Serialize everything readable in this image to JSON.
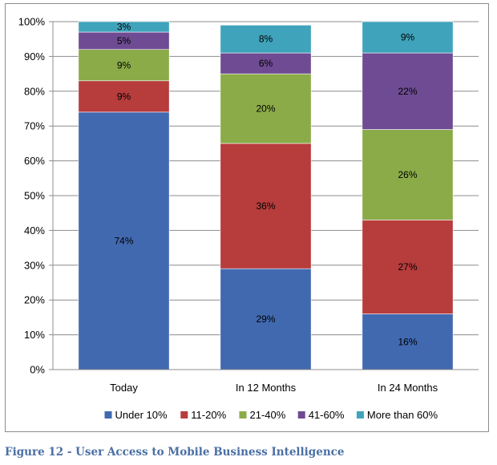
{
  "chart_data": {
    "type": "bar",
    "stacked": true,
    "categories": [
      "Today",
      "In 12 Months",
      "In 24 Months"
    ],
    "series": [
      {
        "name": "Under 10%",
        "color": "#4169b0",
        "values": [
          74,
          29,
          16
        ]
      },
      {
        "name": "11-20%",
        "color": "#b73c3c",
        "values": [
          9,
          36,
          27
        ]
      },
      {
        "name": "21-40%",
        "color": "#8aab48",
        "values": [
          9,
          20,
          26
        ]
      },
      {
        "name": "41-60%",
        "color": "#6e4b92",
        "values": [
          5,
          6,
          22
        ]
      },
      {
        "name": "More than 60%",
        "color": "#3fa3bb",
        "values": [
          3,
          8,
          9
        ]
      }
    ],
    "data_labels": [
      [
        "74%",
        "29%",
        "16%"
      ],
      [
        "9%",
        "36%",
        "27%"
      ],
      [
        "9%",
        "20%",
        "26%"
      ],
      [
        "5%",
        "6%",
        "22%"
      ],
      [
        "3%",
        "8%",
        "9%"
      ]
    ],
    "y_ticks": [
      "0%",
      "10%",
      "20%",
      "30%",
      "40%",
      "50%",
      "60%",
      "70%",
      "80%",
      "90%",
      "100%"
    ],
    "ylim": [
      0,
      100
    ],
    "grid": true,
    "legend_position": "bottom"
  },
  "caption": "Figure 12 - User Access to Mobile Business Intelligence"
}
